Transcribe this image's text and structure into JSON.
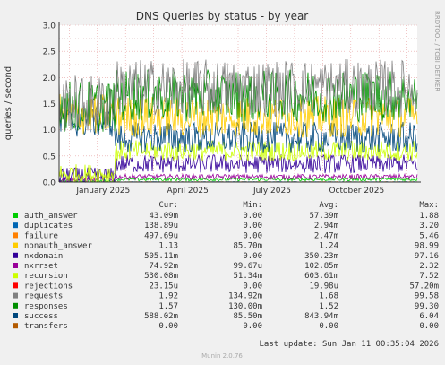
{
  "chart_data": {
    "type": "line",
    "title": "DNS Queries by status - by year",
    "ylabel": "queries / second",
    "side_label": "RRDTOOL / TOBI OETIKER",
    "ylim": [
      0,
      3.0
    ],
    "yticks": [
      "0.0",
      "0.5",
      "1.0",
      "1.5",
      "2.0",
      "2.5",
      "3.0"
    ],
    "xticks": [
      "January 2025",
      "April 2025",
      "July 2025",
      "October 2025"
    ],
    "columns": [
      "Cur:",
      "Min:",
      "Avg:",
      "Max:"
    ],
    "series": [
      {
        "name": "auth_answer",
        "color": "#00cc00",
        "cur": "43.09m",
        "min": "0.00",
        "avg": "57.39m",
        "max": "1.88"
      },
      {
        "name": "duplicates",
        "color": "#0066b3",
        "cur": "138.89u",
        "min": "0.00",
        "avg": "2.94m",
        "max": "3.20"
      },
      {
        "name": "failure",
        "color": "#ff8000",
        "cur": "497.69u",
        "min": "0.00",
        "avg": "2.47m",
        "max": "5.46"
      },
      {
        "name": "nonauth_answer",
        "color": "#ffcc00",
        "cur": "1.13",
        "min": "85.70m",
        "avg": "1.24",
        "max": "98.99"
      },
      {
        "name": "nxdomain",
        "color": "#330099",
        "cur": "505.11m",
        "min": "0.00",
        "avg": "350.23m",
        "max": "97.16"
      },
      {
        "name": "nxrrset",
        "color": "#990099",
        "cur": "74.92m",
        "min": "99.67u",
        "avg": "102.85m",
        "max": "2.32"
      },
      {
        "name": "recursion",
        "color": "#ccff00",
        "cur": "530.08m",
        "min": "51.34m",
        "avg": "603.61m",
        "max": "7.52"
      },
      {
        "name": "rejections",
        "color": "#ff0000",
        "cur": "23.15u",
        "min": "0.00",
        "avg": "19.98u",
        "max": "57.20m"
      },
      {
        "name": "requests",
        "color": "#808080",
        "cur": "1.92",
        "min": "134.92m",
        "avg": "1.68",
        "max": "99.58"
      },
      {
        "name": "responses",
        "color": "#008f00",
        "cur": "1.57",
        "min": "130.00m",
        "avg": "1.52",
        "max": "99.30"
      },
      {
        "name": "success",
        "color": "#00487d",
        "cur": "588.02m",
        "min": "85.50m",
        "avg": "843.94m",
        "max": "6.04"
      },
      {
        "name": "transfers",
        "color": "#b35a00",
        "cur": "0.00",
        "min": "0.00",
        "avg": "0.00",
        "max": "0.00"
      }
    ],
    "last_update": "Last update: Sun Jan 11 00:35:04 2026",
    "footer": "Munin 2.0.76",
    "grid": true
  }
}
